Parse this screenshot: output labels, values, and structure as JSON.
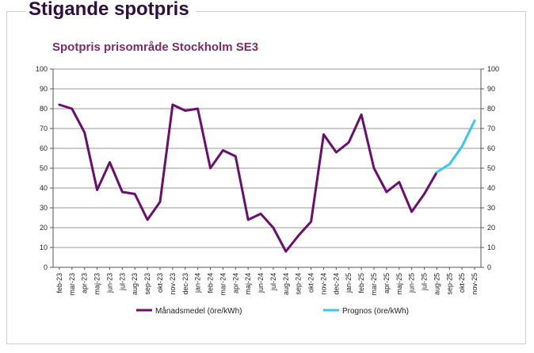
{
  "headline": "Stigande spotpris",
  "chart_data": {
    "type": "line",
    "title": "Spotpris prisområde Stockholm SE3",
    "xlabel": "",
    "ylabel": "",
    "ylim": [
      0,
      100
    ],
    "y_ticks": [
      0,
      10,
      20,
      30,
      40,
      50,
      60,
      70,
      80,
      90,
      100
    ],
    "secondary_y_ticks": [
      0,
      10,
      20,
      30,
      40,
      50,
      60,
      70,
      80,
      90,
      100
    ],
    "grid": true,
    "legend_position": "bottom",
    "categories": [
      "feb-23",
      "mar-23",
      "apr-23",
      "maj-23",
      "jun-23",
      "jul-23",
      "aug-23",
      "sep-23",
      "okt-23",
      "nov-23",
      "dec-23",
      "jan-24",
      "feb-24",
      "mar-24",
      "apr-24",
      "maj-24",
      "jun-24",
      "jul-24",
      "aug-24",
      "sep-24",
      "okt-24",
      "nov-24",
      "dec-24",
      "jan-25",
      "feb-25",
      "mar-25",
      "apr-25",
      "maj-25",
      "jun-25",
      "jul-25",
      "aug-25",
      "sep-25",
      "okt-25",
      "nov-25"
    ],
    "series": [
      {
        "name": "Månadsmedel (öre/kWh)",
        "color": "#6b0f6e",
        "x": [
          "feb-23",
          "mar-23",
          "apr-23",
          "maj-23",
          "jun-23",
          "jul-23",
          "aug-23",
          "sep-23",
          "okt-23",
          "nov-23",
          "dec-23",
          "jan-24",
          "feb-24",
          "mar-24",
          "apr-24",
          "maj-24",
          "jun-24",
          "jul-24",
          "aug-24",
          "sep-24",
          "okt-24",
          "nov-24",
          "dec-24",
          "jan-25",
          "feb-25",
          "mar-25",
          "apr-25",
          "maj-25",
          "jun-25",
          "jul-25",
          "aug-25"
        ],
        "values": [
          82,
          80,
          68,
          39,
          53,
          38,
          37,
          24,
          33,
          82,
          79,
          80,
          50,
          59,
          56,
          24,
          27,
          20,
          8,
          16,
          23,
          67,
          58,
          63,
          77,
          50,
          38,
          43,
          28,
          37,
          48
        ]
      },
      {
        "name": "Prognos (öre/kWh)",
        "color": "#37c8ef",
        "x": [
          "aug-25",
          "sep-25",
          "okt-25",
          "nov-25"
        ],
        "values": [
          48,
          52,
          61,
          74
        ]
      }
    ]
  }
}
